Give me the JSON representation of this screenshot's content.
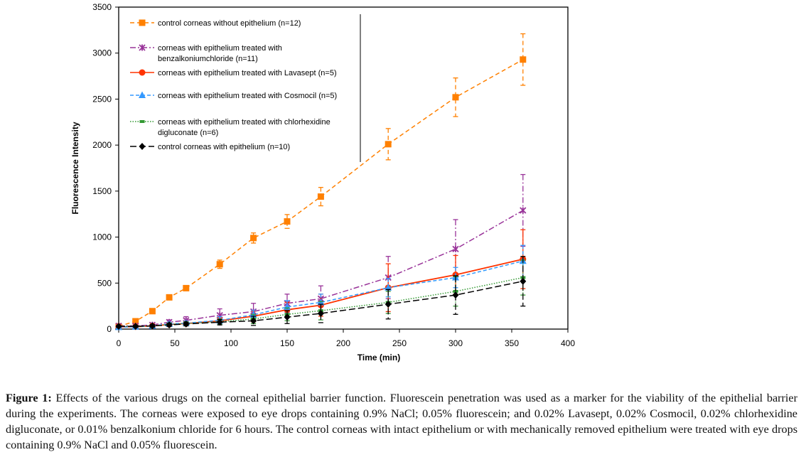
{
  "chart_data": {
    "type": "line",
    "title": "",
    "xlabel": "Time (min)",
    "ylabel": "Fluorescence Intensity",
    "xlim": [
      0,
      400
    ],
    "ylim": [
      0,
      3500
    ],
    "xticks": [
      0,
      50,
      100,
      150,
      200,
      250,
      300,
      350,
      400
    ],
    "yticks": [
      0,
      500,
      1000,
      1500,
      2000,
      2500,
      3000,
      3500
    ],
    "grid": false,
    "legend_position": "top-left",
    "x": [
      0,
      15,
      30,
      45,
      60,
      90,
      120,
      150,
      180,
      240,
      300,
      360
    ],
    "series": [
      {
        "name": "control corneas without epithelium (n=12)",
        "legend_lines": [
          "control corneas without epithelium (n=12)"
        ],
        "color": "#ff8000",
        "marker": "square",
        "dash": "6,4",
        "values": [
          30,
          85,
          195,
          345,
          445,
          705,
          990,
          1170,
          1440,
          2010,
          2520,
          2930
        ],
        "errors": [
          15,
          20,
          20,
          25,
          20,
          45,
          55,
          75,
          100,
          170,
          210,
          280
        ]
      },
      {
        "name": "corneas with epithelium treated with benzalkoniumchloride (n=11)",
        "legend_lines": [
          "corneas with epithelium treated with",
          "benzalkoniumchloride (n=11)"
        ],
        "color": "#993399",
        "marker": "x",
        "dash": "8,3,2,3",
        "values": [
          35,
          35,
          45,
          75,
          95,
          150,
          190,
          280,
          330,
          560,
          870,
          1290
        ],
        "errors": [
          15,
          15,
          20,
          25,
          40,
          70,
          90,
          100,
          140,
          230,
          320,
          390
        ]
      },
      {
        "name": "corneas with epithelium treated with Lavasept (n=5)",
        "legend_lines": [
          "corneas with epithelium treated with Lavasept (n=5)"
        ],
        "color": "#ff3300",
        "marker": "circle",
        "dash": "",
        "values": [
          25,
          25,
          35,
          50,
          60,
          90,
          140,
          210,
          260,
          450,
          590,
          760
        ],
        "errors": [
          10,
          10,
          15,
          20,
          20,
          40,
          60,
          80,
          120,
          260,
          210,
          320
        ]
      },
      {
        "name": "corneas with epithelium treated with Cosmocil (n=5)",
        "legend_lines": [
          "corneas with epithelium treated with Cosmocil (n=5)"
        ],
        "color": "#3399ff",
        "marker": "triangle",
        "dash": "5,3",
        "values": [
          20,
          25,
          35,
          55,
          65,
          95,
          155,
          240,
          290,
          450,
          560,
          740
        ],
        "errors": [
          10,
          10,
          15,
          20,
          20,
          40,
          50,
          70,
          90,
          100,
          110,
          170
        ]
      },
      {
        "name": "corneas with epithelium treated with chlorhexidine digluconate (n=6)",
        "legend_lines": [
          "corneas with epithelium treated with chlorhexidine",
          "digluconate (n=6)"
        ],
        "color": "#339933",
        "marker": "dash",
        "dash": "1.5,2",
        "values": [
          30,
          30,
          35,
          50,
          60,
          80,
          110,
          160,
          200,
          290,
          410,
          560
        ],
        "errors": [
          10,
          10,
          15,
          15,
          20,
          30,
          50,
          70,
          100,
          120,
          160,
          190
        ]
      },
      {
        "name": "control corneas with epithelium (n=10)",
        "legend_lines": [
          "control corneas with epithelium (n=10)"
        ],
        "color": "#000000",
        "marker": "diamond",
        "dash": "9,4",
        "values": [
          30,
          30,
          35,
          45,
          55,
          75,
          90,
          130,
          170,
          270,
          370,
          520
        ],
        "errors": [
          10,
          10,
          15,
          15,
          20,
          30,
          50,
          70,
          100,
          160,
          210,
          270
        ]
      }
    ]
  },
  "caption": {
    "label": "Figure 1:",
    "text": " Effects of the various drugs on the corneal epithelial barrier function. Fluorescein penetration was used as a marker for the viability of the epithelial barrier during the experiments. The corneas were exposed to eye drops containing 0.9% NaCl; 0.05% fluorescein; and 0.02% Lavasept, 0.02% Cosmocil, 0.02% chlorhexidine digluconate, or 0.01% benzalkonium chloride for 6 hours. The control corneas with intact epithelium or with mechanically removed epithelium were treated with eye drops containing 0.9% NaCl and 0.05% fluorescein."
  }
}
